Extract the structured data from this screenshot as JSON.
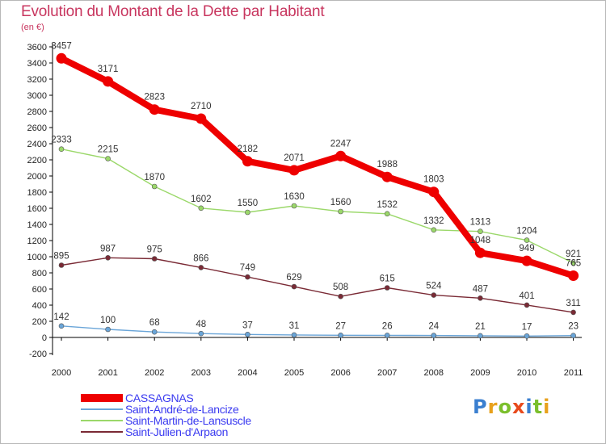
{
  "header": {
    "title": "Evolution du Montant de la Dette par Habitant",
    "unit": "(en €)"
  },
  "chart_data": {
    "type": "line",
    "title": "Evolution du Montant de la Dette par Habitant",
    "subtitle": "(en €)",
    "xlabel": "",
    "ylabel": "",
    "categories": [
      "2000",
      "2001",
      "2002",
      "2003",
      "2004",
      "2005",
      "2006",
      "2007",
      "2008",
      "2009",
      "2010",
      "2011"
    ],
    "ylim": [
      -200,
      3600
    ],
    "yticks": [
      -200,
      0,
      200,
      400,
      600,
      800,
      1000,
      1200,
      1400,
      1600,
      1800,
      2000,
      2200,
      2400,
      2600,
      2800,
      3000,
      3200,
      3400,
      3600
    ],
    "grid": false,
    "legend": "bottom-left",
    "series": [
      {
        "name": "CASSAGNAS",
        "color": "#ee0000",
        "values": [
          3457,
          3171,
          2823,
          2710,
          2182,
          2071,
          2247,
          1988,
          1803,
          1048,
          949,
          765
        ]
      },
      {
        "name": "Saint-André-de-Lancize",
        "color": "#6aa5d8",
        "values": [
          142,
          100,
          68,
          48,
          37,
          31,
          27,
          26,
          24,
          21,
          17,
          23
        ]
      },
      {
        "name": "Saint-Martin-de-Lansuscle",
        "color": "#9bd86a",
        "values": [
          2333,
          2215,
          1870,
          1602,
          1550,
          1630,
          1560,
          1532,
          1332,
          1313,
          1204,
          921
        ]
      },
      {
        "name": "Saint-Julien-d'Arpaon",
        "color": "#7a2a35",
        "values": [
          895,
          987,
          975,
          866,
          749,
          629,
          508,
          615,
          524,
          487,
          401,
          311
        ]
      }
    ],
    "data_labels": [
      [
        "3457",
        "3171",
        "2823",
        "2710",
        "2182",
        "2071",
        "2247",
        "1988",
        "1803",
        "1048",
        "949",
        "765"
      ],
      [
        "142",
        "100",
        "68",
        "48",
        "37",
        "31",
        "27",
        "26",
        "24",
        "21",
        "17",
        "23"
      ],
      [
        "2333",
        "2215",
        "1870",
        "1602",
        "1550",
        "1630",
        "1560",
        "1532",
        "1332",
        "1313",
        "1204",
        "921"
      ],
      [
        "895",
        "987",
        "975",
        "866",
        "749",
        "629",
        "508",
        "615",
        "524",
        "487",
        "401",
        "311"
      ]
    ]
  },
  "legend": {
    "items": [
      {
        "label": "CASSAGNAS",
        "color": "#ee0000"
      },
      {
        "label": "Saint-André-de-Lancize",
        "color": "#6aa5d8"
      },
      {
        "label": "Saint-Martin-de-Lansuscle",
        "color": "#9bd86a"
      },
      {
        "label": "Saint-Julien-d'Arpaon",
        "color": "#7a2a35"
      }
    ]
  },
  "logo": {
    "text": "Proxiti"
  }
}
